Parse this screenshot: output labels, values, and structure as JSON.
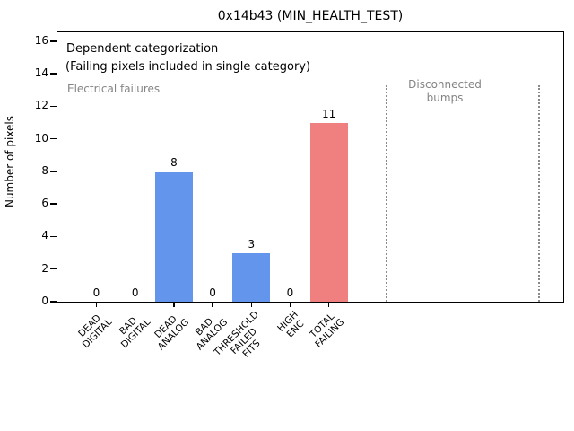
{
  "title": "0x14b43 (MIN_HEALTH_TEST)",
  "ylabel": "Number of pixels",
  "annotations": {
    "dependent_line1": "Dependent categorization",
    "dependent_line2": "(Failing pixels included in single category)",
    "electrical": "Electrical failures",
    "disconnected_line1": "Disconnected",
    "disconnected_line2": "bumps"
  },
  "colors": {
    "bar_blue": "#6495ED",
    "bar_red": "#F08080",
    "gray_text": "#848484",
    "dotted_line": "#8a8a8a"
  },
  "chart_data": {
    "type": "bar",
    "title": "0x14b43 (MIN_HEALTH_TEST)",
    "xlabel": "",
    "ylabel": "Number of pixels",
    "categories": [
      "DEAD\nDIGITAL",
      "BAD\nDIGITAL",
      "DEAD\nANALOG",
      "BAD\nANALOG",
      "THRESHOLD\nFAILED\nFITS",
      "HIGH\nENC",
      "TOTAL\nFAILING"
    ],
    "values": [
      0,
      0,
      8,
      0,
      3,
      0,
      11
    ],
    "value_labels": [
      "0",
      "0",
      "8",
      "0",
      "3",
      "0",
      "11"
    ],
    "bar_colors": [
      "#6495ED",
      "#6495ED",
      "#6495ED",
      "#6495ED",
      "#6495ED",
      "#6495ED",
      "#F08080"
    ],
    "yticks": [
      0,
      2,
      4,
      6,
      8,
      10,
      12,
      14,
      16
    ],
    "ylim": [
      0,
      16.55
    ],
    "grid": false,
    "legend": null,
    "annotations": [
      "Dependent categorization",
      "(Failing pixels included in single category)",
      "Electrical failures",
      "Disconnected bumps"
    ],
    "vlines": {
      "style": "dotted",
      "color": "#8a8a8a",
      "count": 2,
      "ymax_value": 13.3,
      "note": "two dotted separators right of bars marking the Disconnected bumps region"
    }
  }
}
